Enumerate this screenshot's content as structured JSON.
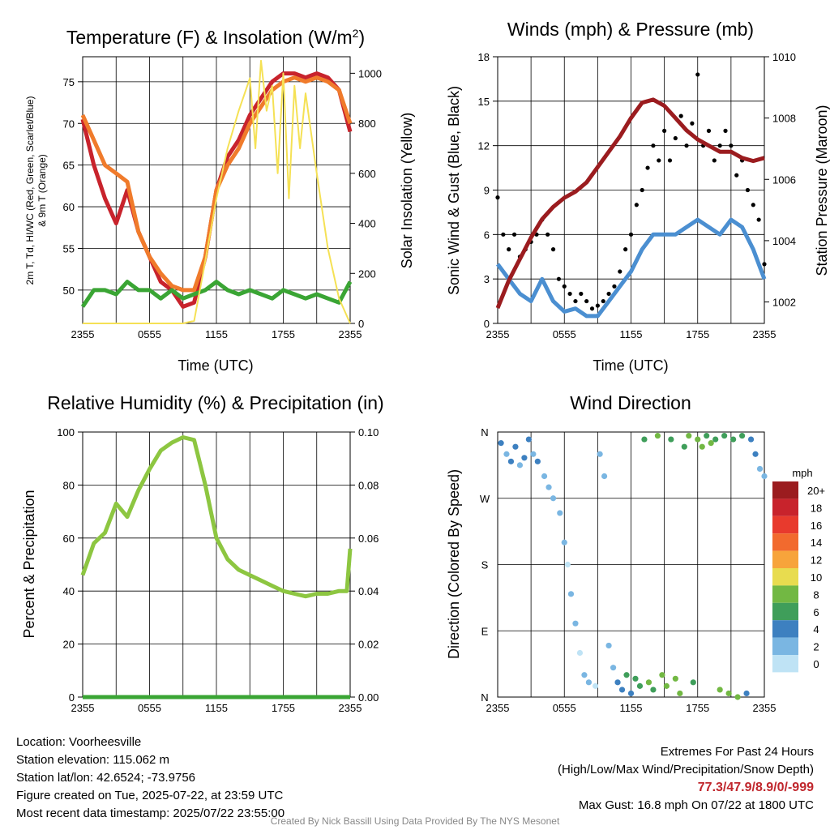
{
  "chart_data": [
    {
      "type": "line",
      "title": "Temperature (F) & Insolation (W/m²)",
      "xlabel": "Time (UTC)",
      "ylabel_lines": [
        "2m T, Td, HI/WC (Red, Green, Scarlet/Blue)",
        "& 9m T (Orange)"
      ],
      "y2label": "Solar Insolation (Yellow)",
      "x_ticks": [
        "2355",
        "0555",
        "1155",
        "1755",
        "2355"
      ],
      "ylim": [
        46,
        78
      ],
      "y_ticks": [
        50,
        55,
        60,
        65,
        70,
        75
      ],
      "y2lim": [
        0,
        1066
      ],
      "y2_ticks": [
        0,
        200,
        400,
        600,
        800,
        1000
      ],
      "x_hours": [
        0,
        24
      ],
      "series": [
        {
          "name": "2m T",
          "color": "#c8232c",
          "axis": "left",
          "x": [
            0,
            1,
            2,
            3,
            4,
            5,
            6,
            7,
            8,
            9,
            10,
            11,
            12,
            13,
            14,
            15,
            16,
            17,
            18,
            19,
            20,
            21,
            22,
            23,
            24
          ],
          "y": [
            70.5,
            65,
            61,
            58,
            62,
            57,
            54,
            51,
            50,
            48,
            48.5,
            54,
            62,
            66,
            68,
            71,
            73,
            75,
            76,
            76,
            75.5,
            76,
            75.5,
            74,
            69
          ]
        },
        {
          "name": "9m T",
          "color": "#f07b2b",
          "axis": "left",
          "x": [
            0,
            1,
            2,
            3,
            4,
            5,
            6,
            7,
            8,
            9,
            10,
            11,
            12,
            13,
            14,
            15,
            16,
            17,
            18,
            19,
            20,
            21,
            22,
            23,
            24
          ],
          "y": [
            71,
            68,
            65,
            64,
            63,
            57,
            54,
            52,
            50.5,
            50,
            50,
            54,
            62,
            65,
            67,
            70,
            72,
            74,
            75,
            75.5,
            75,
            75.5,
            75,
            74,
            70
          ]
        },
        {
          "name": "2m Td",
          "color": "#3aa534",
          "axis": "left",
          "x": [
            0,
            1,
            2,
            3,
            4,
            5,
            6,
            7,
            8,
            9,
            10,
            11,
            12,
            13,
            14,
            15,
            16,
            17,
            18,
            19,
            20,
            21,
            22,
            23,
            24
          ],
          "y": [
            48,
            50,
            50,
            49.5,
            51,
            50,
            50,
            49,
            50,
            49,
            49.5,
            50,
            51,
            50,
            49.5,
            50,
            49.5,
            49,
            50,
            49.5,
            49,
            49.5,
            49,
            48.5,
            51
          ]
        },
        {
          "name": "Insolation",
          "color": "#f5e155",
          "axis": "right",
          "x": [
            0,
            1,
            2,
            3,
            4,
            5,
            6,
            7,
            8,
            9,
            10,
            11,
            12,
            13,
            14,
            15,
            15.5,
            16,
            16.5,
            17,
            17.5,
            18,
            18.5,
            19,
            19.5,
            20,
            21,
            22,
            23,
            24
          ],
          "y": [
            0,
            0,
            0,
            0,
            0,
            0,
            0,
            0,
            0,
            0,
            10,
            250,
            500,
            700,
            850,
            980,
            700,
            1050,
            850,
            950,
            600,
            1000,
            500,
            950,
            700,
            920,
            600,
            300,
            100,
            0
          ]
        }
      ]
    },
    {
      "type": "scatter",
      "title": "Winds (mph) & Pressure (mb)",
      "xlabel": "Time (UTC)",
      "ylabel": "Sonic Wind & Gust (Blue, Black)",
      "y2label": "Station Pressure (Maroon)",
      "x_ticks": [
        "2355",
        "0555",
        "1155",
        "1755",
        "2355"
      ],
      "ylim": [
        0,
        18
      ],
      "y_ticks": [
        0,
        3,
        6,
        9,
        12,
        15,
        18
      ],
      "y2lim": [
        1001.3,
        1010
      ],
      "y2_ticks": [
        1002,
        1004,
        1006,
        1008,
        1010
      ],
      "x_hours": [
        0,
        24
      ],
      "series": [
        {
          "name": "Sonic Wind",
          "color": "#4b8fd1",
          "axis": "left",
          "x": [
            0,
            1,
            2,
            3,
            4,
            5,
            6,
            7,
            8,
            9,
            10,
            11,
            12,
            13,
            14,
            15,
            16,
            17,
            18,
            19,
            20,
            21,
            22,
            23,
            24
          ],
          "y": [
            4,
            3,
            2,
            1.5,
            3,
            1.5,
            0.8,
            1,
            0.5,
            0.5,
            1.5,
            2.5,
            3.5,
            5,
            6,
            6,
            6,
            6.5,
            7,
            6.5,
            6,
            7,
            6.5,
            5,
            3
          ]
        },
        {
          "name": "Gust",
          "color": "#000000",
          "axis": "left",
          "marker": "dot",
          "x": [
            0,
            0.5,
            1,
            1.5,
            2,
            2.5,
            3,
            3.5,
            4,
            4.5,
            5,
            5.5,
            6,
            6.5,
            7,
            7.5,
            8,
            8.5,
            9,
            9.5,
            10,
            10.5,
            11,
            11.5,
            12,
            12.5,
            13,
            13.5,
            14,
            14.5,
            15,
            15.5,
            16,
            16.5,
            17,
            17.5,
            18,
            18.5,
            19,
            19.5,
            20,
            20.5,
            21,
            21.5,
            22,
            22.5,
            23,
            23.5,
            24
          ],
          "y": [
            8.5,
            6,
            5,
            6,
            4.5,
            5,
            5.5,
            6,
            7,
            6,
            5,
            3,
            2.5,
            2,
            1.5,
            2,
            1.5,
            1,
            1.2,
            1.5,
            2,
            2.5,
            3.5,
            5,
            6,
            8,
            9,
            10.5,
            12,
            11,
            13,
            11,
            12.5,
            14,
            12,
            13.5,
            16.8,
            12,
            13,
            11,
            12,
            13,
            12,
            10,
            11,
            9,
            8,
            7,
            4
          ]
        },
        {
          "name": "Station Pressure",
          "color": "#9b1c1f",
          "axis": "right",
          "x": [
            0,
            1,
            2,
            3,
            4,
            5,
            6,
            7,
            8,
            9,
            10,
            11,
            12,
            13,
            14,
            15,
            16,
            17,
            18,
            19,
            20,
            21,
            22,
            23,
            24
          ],
          "y": [
            1001.8,
            1002.7,
            1003.4,
            1004.1,
            1004.7,
            1005.1,
            1005.4,
            1005.6,
            1005.9,
            1006.4,
            1006.9,
            1007.4,
            1008.0,
            1008.5,
            1008.6,
            1008.4,
            1008.0,
            1007.6,
            1007.3,
            1007.1,
            1006.9,
            1006.9,
            1006.7,
            1006.6,
            1006.7
          ]
        }
      ]
    },
    {
      "type": "line",
      "title": "Relative Humidity (%) & Precipitation (in)",
      "ylabel": "Percent & Precipitation",
      "x_ticks": [
        "2355",
        "0555",
        "1155",
        "1755",
        "2355"
      ],
      "ylim": [
        0,
        100
      ],
      "y_ticks": [
        0,
        20,
        40,
        60,
        80,
        100
      ],
      "y2lim": [
        0,
        0.1
      ],
      "y2_ticks": [
        "0.00",
        "0.02",
        "0.04",
        "0.06",
        "0.08",
        "0.10"
      ],
      "x_hours": [
        0,
        24
      ],
      "series": [
        {
          "name": "Relative Humidity",
          "color": "#8dc641",
          "axis": "left",
          "x": [
            0,
            1,
            2,
            3,
            4,
            5,
            6,
            7,
            8,
            9,
            10,
            11,
            12,
            13,
            14,
            15,
            16,
            17,
            18,
            19,
            20,
            21,
            22,
            23,
            23.7,
            24
          ],
          "y": [
            46,
            58,
            62,
            73,
            68,
            78,
            86,
            93,
            96,
            98,
            97,
            80,
            60,
            52,
            48,
            46,
            44,
            42,
            40,
            39,
            38,
            39,
            39,
            40,
            40,
            56
          ]
        },
        {
          "name": "Precipitation",
          "color": "#3aa534",
          "axis": "right",
          "x": [
            0,
            24
          ],
          "y": [
            0,
            0
          ]
        }
      ]
    },
    {
      "type": "scatter",
      "title": "Wind Direction",
      "ylabel": "Direction (Colored By Speed)",
      "x_ticks": [
        "2355",
        "0555",
        "1155",
        "1755",
        "2355"
      ],
      "y_ticks": [
        "N",
        "E",
        "S",
        "W",
        "N"
      ],
      "ylim": [
        0,
        360
      ],
      "x_hours": [
        0,
        24
      ],
      "legend_title": "mph",
      "legend_labels": [
        "20+",
        "18",
        "16",
        "14",
        "12",
        "10",
        "8",
        "6",
        "4",
        "2",
        "0"
      ],
      "legend_colors": [
        "#9b1c1f",
        "#c8232c",
        "#e83a2d",
        "#f26a2e",
        "#f7a43b",
        "#e8dc4f",
        "#72b843",
        "#3f9e5a",
        "#3d80c0",
        "#7ab6e2",
        "#bfe3f5"
      ],
      "points": [
        {
          "x": 0.3,
          "dir": 345,
          "speed": 3
        },
        {
          "x": 0.8,
          "dir": 330,
          "speed": 2
        },
        {
          "x": 1.2,
          "dir": 320,
          "speed": 4
        },
        {
          "x": 1.6,
          "dir": 340,
          "speed": 3
        },
        {
          "x": 2.0,
          "dir": 315,
          "speed": 2
        },
        {
          "x": 2.4,
          "dir": 325,
          "speed": 4
        },
        {
          "x": 2.8,
          "dir": 350,
          "speed": 3
        },
        {
          "x": 3.2,
          "dir": 330,
          "speed": 2
        },
        {
          "x": 3.6,
          "dir": 320,
          "speed": 3
        },
        {
          "x": 4.2,
          "dir": 300,
          "speed": 2
        },
        {
          "x": 4.6,
          "dir": 285,
          "speed": 1
        },
        {
          "x": 5.0,
          "dir": 270,
          "speed": 1
        },
        {
          "x": 5.6,
          "dir": 250,
          "speed": 1
        },
        {
          "x": 6.0,
          "dir": 210,
          "speed": 1
        },
        {
          "x": 6.3,
          "dir": 180,
          "speed": 0.5
        },
        {
          "x": 6.6,
          "dir": 140,
          "speed": 1
        },
        {
          "x": 7.0,
          "dir": 100,
          "speed": 1
        },
        {
          "x": 7.4,
          "dir": 60,
          "speed": 0.5
        },
        {
          "x": 7.8,
          "dir": 30,
          "speed": 1
        },
        {
          "x": 8.2,
          "dir": 20,
          "speed": 1
        },
        {
          "x": 8.8,
          "dir": 15,
          "speed": 0.5
        },
        {
          "x": 9.2,
          "dir": 330,
          "speed": 1
        },
        {
          "x": 9.6,
          "dir": 300,
          "speed": 1
        },
        {
          "x": 10.0,
          "dir": 70,
          "speed": 2
        },
        {
          "x": 10.4,
          "dir": 40,
          "speed": 2
        },
        {
          "x": 10.8,
          "dir": 20,
          "speed": 3
        },
        {
          "x": 11.2,
          "dir": 10,
          "speed": 4
        },
        {
          "x": 11.6,
          "dir": 30,
          "speed": 5
        },
        {
          "x": 12.0,
          "dir": 5,
          "speed": 4
        },
        {
          "x": 12.4,
          "dir": 25,
          "speed": 6
        },
        {
          "x": 12.8,
          "dir": 15,
          "speed": 5
        },
        {
          "x": 13.2,
          "dir": 350,
          "speed": 6
        },
        {
          "x": 13.6,
          "dir": 20,
          "speed": 7
        },
        {
          "x": 14.0,
          "dir": 10,
          "speed": 6
        },
        {
          "x": 14.4,
          "dir": 355,
          "speed": 7
        },
        {
          "x": 14.8,
          "dir": 30,
          "speed": 8
        },
        {
          "x": 15.2,
          "dir": 15,
          "speed": 7
        },
        {
          "x": 15.6,
          "dir": 350,
          "speed": 6
        },
        {
          "x": 16.0,
          "dir": 25,
          "speed": 8
        },
        {
          "x": 16.4,
          "dir": 5,
          "speed": 7
        },
        {
          "x": 16.8,
          "dir": 340,
          "speed": 6
        },
        {
          "x": 17.2,
          "dir": 355,
          "speed": 7
        },
        {
          "x": 17.6,
          "dir": 20,
          "speed": 6
        },
        {
          "x": 18.0,
          "dir": 350,
          "speed": 8
        },
        {
          "x": 18.4,
          "dir": 340,
          "speed": 7
        },
        {
          "x": 18.8,
          "dir": 355,
          "speed": 6
        },
        {
          "x": 19.2,
          "dir": 345,
          "speed": 7
        },
        {
          "x": 19.6,
          "dir": 350,
          "speed": 6
        },
        {
          "x": 20.0,
          "dir": 10,
          "speed": 7
        },
        {
          "x": 20.4,
          "dir": 355,
          "speed": 6
        },
        {
          "x": 20.8,
          "dir": 5,
          "speed": 8
        },
        {
          "x": 21.2,
          "dir": 350,
          "speed": 6
        },
        {
          "x": 21.6,
          "dir": 0,
          "speed": 7
        },
        {
          "x": 22.0,
          "dir": 355,
          "speed": 6
        },
        {
          "x": 22.4,
          "dir": 5,
          "speed": 4
        },
        {
          "x": 22.8,
          "dir": 350,
          "speed": 4
        },
        {
          "x": 23.2,
          "dir": 330,
          "speed": 3
        },
        {
          "x": 23.6,
          "dir": 310,
          "speed": 2
        },
        {
          "x": 24.0,
          "dir": 300,
          "speed": 2
        }
      ]
    }
  ],
  "info": {
    "location": "Location: Voorheesville",
    "elevation": "Station elevation: 115.062 m",
    "latlon": "Station lat/lon: 42.6524; -73.9756",
    "created": "Figure created on Tue, 2025-07-22, at 23:59 UTC",
    "recent": "Most recent data timestamp: 2025/07/22 23:55:00"
  },
  "extremes": {
    "heading": "Extremes For Past 24 Hours",
    "subheading": "(High/Low/Max Wind/Precipitation/Snow Depth)",
    "values": "77.3/47.9/8.9/0/-999",
    "gust": "Max Gust: 16.8 mph On 07/22 at 1800 UTC"
  },
  "credit": "Created By Nick Bassill Using Data Provided By The NYS Mesonet"
}
